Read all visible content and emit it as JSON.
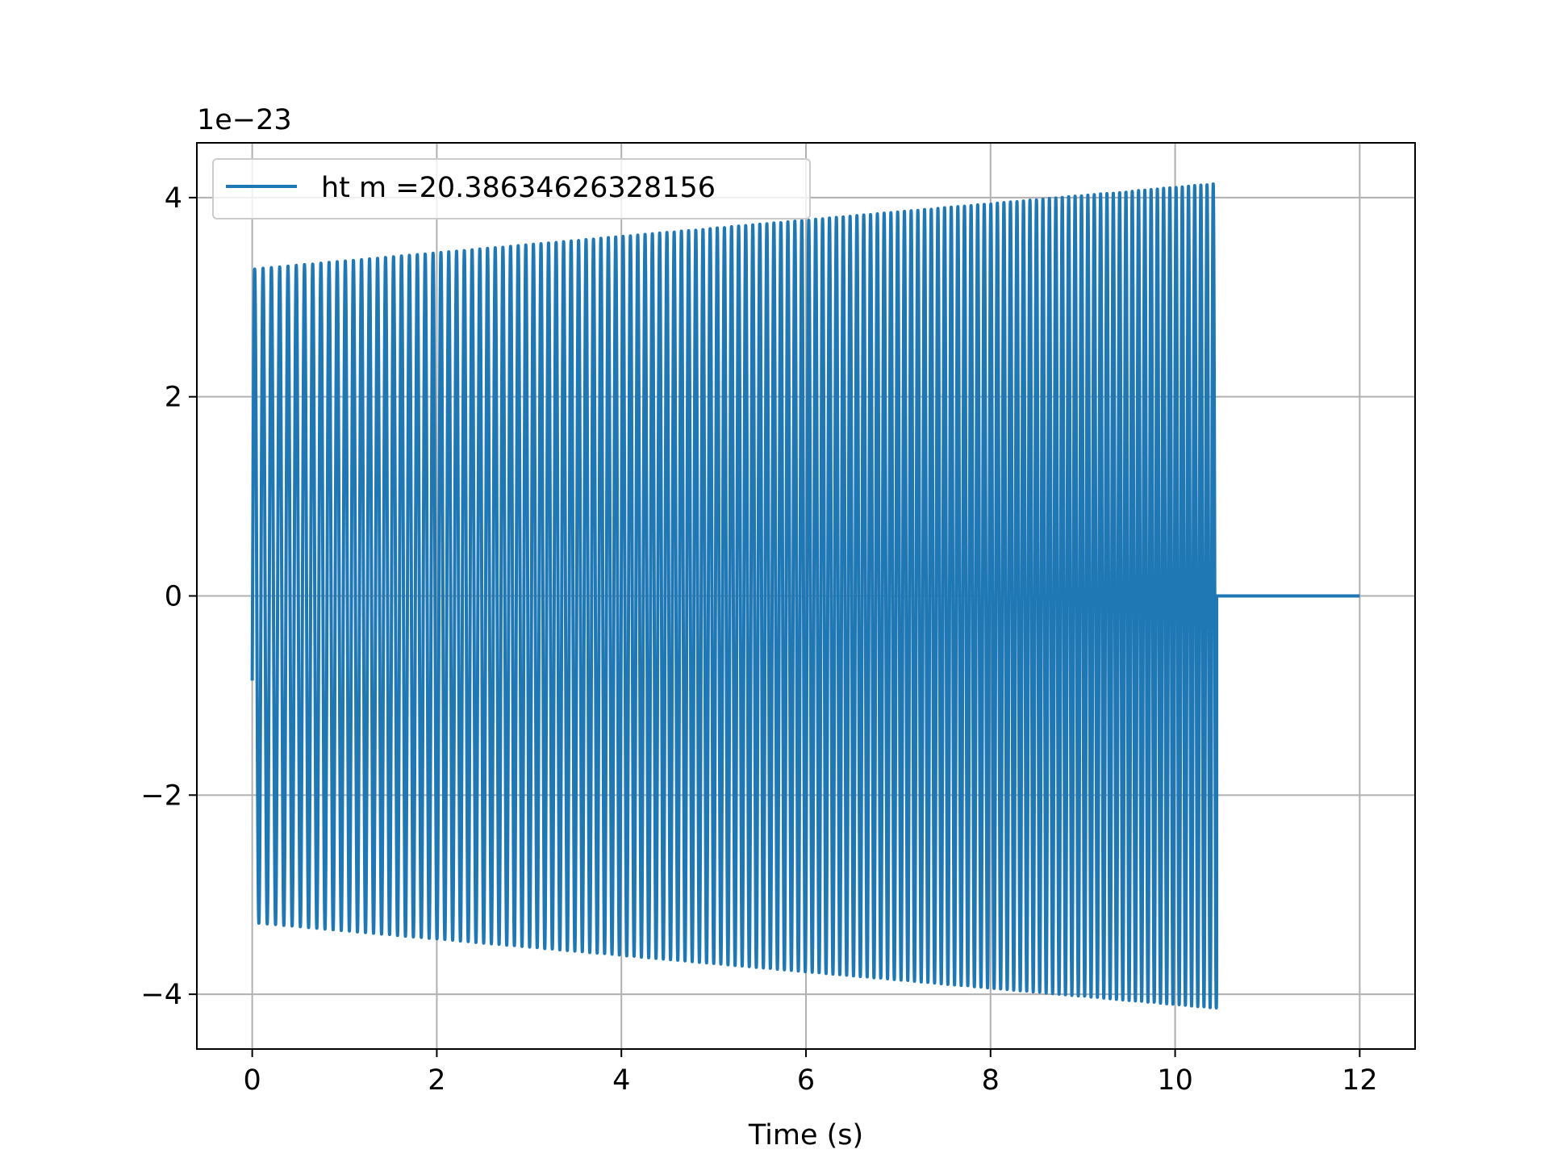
{
  "chart_data": {
    "type": "line",
    "xlabel": "Time (s)",
    "ylabel": "",
    "y_offset_label": "1e−23",
    "xlim": [
      -0.6,
      12.6
    ],
    "ylim": [
      -4.55,
      4.55
    ],
    "x_ticks": [
      0,
      2,
      4,
      6,
      8,
      10,
      12
    ],
    "x_tick_labels": [
      "0",
      "2",
      "4",
      "6",
      "8",
      "10",
      "12"
    ],
    "y_ticks": [
      -4,
      -2,
      0,
      2,
      4
    ],
    "y_tick_labels": [
      "−4",
      "−2",
      "0",
      "2",
      "4"
    ],
    "grid": true,
    "legend_position": "upper-left",
    "series": [
      {
        "name": "ht m =20.38634626328156",
        "color": "#1f77b4",
        "signal": {
          "t_start": 0.0,
          "t_end": 10.45,
          "total_t": 12.0,
          "amplitude_start": 3.28,
          "amplitude_end": 4.14,
          "initial_value": -0.85,
          "frequency_start": 11.0,
          "frequency_end": 15.0,
          "after_end_value": 0.0
        }
      }
    ]
  }
}
